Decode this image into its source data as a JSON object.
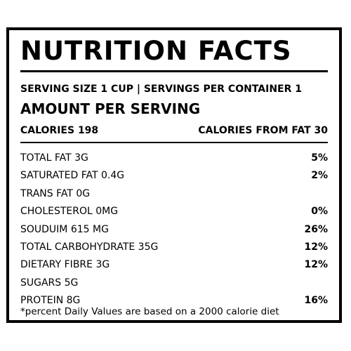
{
  "label": {
    "title": "NUTRITION FACTS",
    "serving": "SERVING SIZE 1 CUP | SERVINGS PER CONTAINER 1",
    "amount_header": "AMOUNT PER SERVING",
    "calories": "CALORIES 198",
    "calories_from_fat": "CALORIES FROM FAT 30",
    "nutrients": [
      {
        "name": "TOTAL FAT 3G",
        "percent": "5%"
      },
      {
        "name": "SATURATED FAT 0.4G",
        "percent": "2%"
      },
      {
        "name": "TRANS FAT 0G",
        "percent": ""
      },
      {
        "name": "CHOLESTEROL 0MG",
        "percent": "0%"
      },
      {
        "name": "SOUDUIM 615 MG",
        "percent": "26%"
      },
      {
        "name": "TOTAL CARBOHYDRATE 35G",
        "percent": "12%"
      },
      {
        "name": "DIETARY FIBRE 3G",
        "percent": "12%"
      },
      {
        "name": "SUGARS 5G",
        "percent": ""
      },
      {
        "name": "PROTEIN 8G",
        "percent": "16%"
      }
    ],
    "footnote": "*percent Daily Values are based on a 2000 calorie diet"
  }
}
